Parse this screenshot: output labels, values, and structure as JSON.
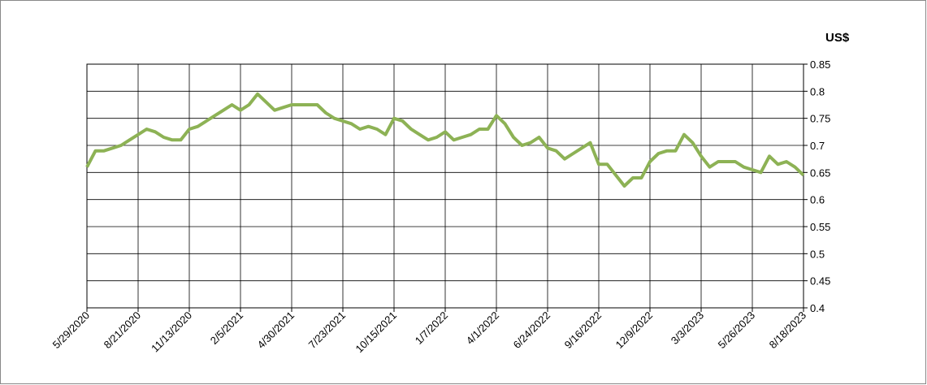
{
  "chart_data": {
    "type": "line",
    "y_axis_label": "US$",
    "x": [
      "5/29/2020",
      "6/12/2020",
      "6/26/2020",
      "7/10/2020",
      "7/24/2020",
      "8/7/2020",
      "8/21/2020",
      "9/4/2020",
      "9/18/2020",
      "10/2/2020",
      "10/16/2020",
      "10/30/2020",
      "11/13/2020",
      "11/27/2020",
      "12/11/2020",
      "12/25/2020",
      "1/8/2021",
      "1/22/2021",
      "2/5/2021",
      "2/19/2021",
      "3/5/2021",
      "3/19/2021",
      "4/2/2021",
      "4/16/2021",
      "4/30/2021",
      "5/14/2021",
      "5/28/2021",
      "6/11/2021",
      "6/25/2021",
      "7/9/2021",
      "7/23/2021",
      "8/6/2021",
      "8/20/2021",
      "9/3/2021",
      "9/17/2021",
      "10/1/2021",
      "10/15/2021",
      "10/29/2021",
      "11/12/2021",
      "11/26/2021",
      "12/10/2021",
      "12/24/2021",
      "1/7/2022",
      "1/21/2022",
      "2/4/2022",
      "2/18/2022",
      "3/4/2022",
      "3/18/2022",
      "4/1/2022",
      "4/15/2022",
      "4/29/2022",
      "5/13/2022",
      "5/27/2022",
      "6/10/2022",
      "6/24/2022",
      "7/8/2022",
      "7/22/2022",
      "8/5/2022",
      "8/19/2022",
      "9/2/2022",
      "9/16/2022",
      "9/30/2022",
      "10/14/2022",
      "10/28/2022",
      "11/11/2022",
      "11/25/2022",
      "12/9/2022",
      "12/23/2022",
      "1/6/2023",
      "1/20/2023",
      "2/3/2023",
      "2/17/2023",
      "3/3/2023",
      "3/17/2023",
      "3/31/2023",
      "4/14/2023",
      "4/28/2023",
      "5/12/2023",
      "5/26/2023",
      "6/9/2023",
      "6/23/2023",
      "7/7/2023",
      "7/21/2023",
      "8/4/2023",
      "8/18/2023"
    ],
    "series": [
      {
        "name": "US$",
        "color": "#8db255",
        "values": [
          0.66,
          0.69,
          0.69,
          0.695,
          0.7,
          0.71,
          0.72,
          0.73,
          0.725,
          0.715,
          0.71,
          0.71,
          0.73,
          0.735,
          0.745,
          0.755,
          0.765,
          0.775,
          0.765,
          0.775,
          0.795,
          0.78,
          0.765,
          0.77,
          0.775,
          0.775,
          0.775,
          0.775,
          0.76,
          0.75,
          0.745,
          0.74,
          0.73,
          0.735,
          0.73,
          0.72,
          0.75,
          0.745,
          0.73,
          0.72,
          0.71,
          0.715,
          0.725,
          0.71,
          0.715,
          0.72,
          0.73,
          0.73,
          0.755,
          0.74,
          0.715,
          0.7,
          0.705,
          0.715,
          0.695,
          0.69,
          0.675,
          0.685,
          0.695,
          0.705,
          0.665,
          0.665,
          0.645,
          0.625,
          0.64,
          0.64,
          0.67,
          0.685,
          0.69,
          0.69,
          0.72,
          0.705,
          0.68,
          0.66,
          0.67,
          0.67,
          0.67,
          0.66,
          0.655,
          0.65,
          0.68,
          0.665,
          0.67,
          0.66,
          0.645
        ]
      }
    ],
    "xlim": [
      "5/29/2020",
      "8/18/2023"
    ],
    "xticks": [
      "5/29/2020",
      "8/21/2020",
      "11/13/2020",
      "2/5/2021",
      "4/30/2021",
      "7/23/2021",
      "10/15/2021",
      "1/7/2022",
      "4/1/2022",
      "6/24/2022",
      "9/16/2022",
      "12/9/2022",
      "3/3/2023",
      "5/26/2023",
      "8/18/2023"
    ],
    "ylim": [
      0.4,
      0.85
    ],
    "yticks": [
      0.4,
      0.45,
      0.5,
      0.55,
      0.6,
      0.65,
      0.7,
      0.75,
      0.8,
      0.85
    ],
    "grid": true
  }
}
